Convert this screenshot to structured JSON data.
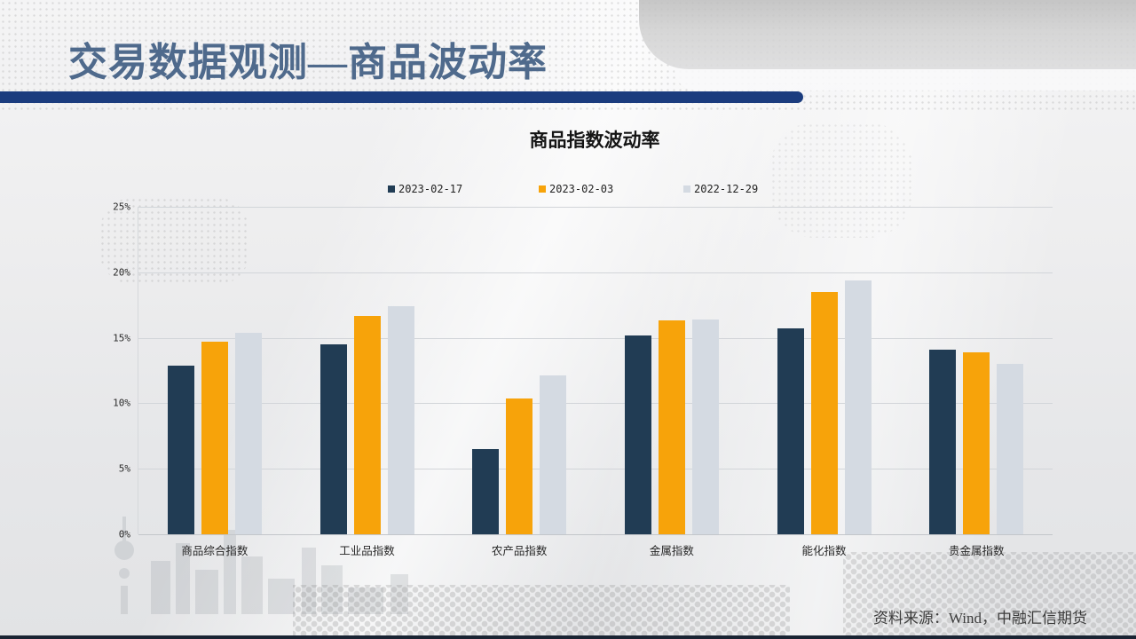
{
  "slide": {
    "title": "交易数据观测—商品波动率",
    "source_note": "资料来源：Wind，中融汇信期货"
  },
  "colors": {
    "title_text": "#4f6a8c",
    "title_underline": "#1b3c7e",
    "bottom_border": "#1a2433",
    "series_navy": "#213c54",
    "series_orange": "#f7a30a",
    "series_light": "#d4dae2"
  },
  "chart_data": {
    "type": "bar",
    "title": "商品指数波动率",
    "categories": [
      "商品综合指数",
      "工业品指数",
      "农产品指数",
      "金属指数",
      "能化指数",
      "贵金属指数"
    ],
    "series": [
      {
        "name": "2023-02-17",
        "color": "#213c54",
        "values": [
          12.9,
          14.5,
          6.5,
          15.2,
          15.7,
          14.1
        ]
      },
      {
        "name": "2023-02-03",
        "color": "#f7a30a",
        "values": [
          14.7,
          16.7,
          10.4,
          16.3,
          18.5,
          13.9
        ]
      },
      {
        "name": "2022-12-29",
        "color": "#d4dae2",
        "values": [
          15.4,
          17.4,
          12.1,
          16.4,
          19.4,
          13.0
        ]
      }
    ],
    "xlabel": "",
    "ylabel": "",
    "ylim": [
      0,
      25
    ],
    "y_ticks": [
      "25%",
      "20%",
      "15%",
      "10%",
      "5%",
      "0%"
    ],
    "grid": true,
    "legend_position": "top"
  }
}
